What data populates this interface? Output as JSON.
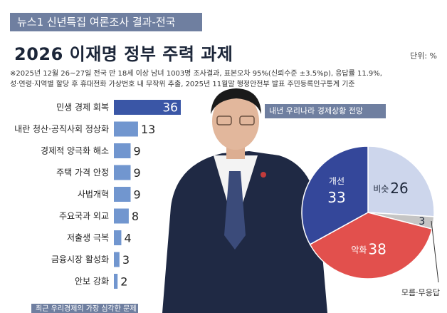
{
  "header_tag": "뉴스1 신년특집 여론조사 결과-전국",
  "title": "2026 이재명 정부 주력 과제",
  "unit": "단위: %",
  "notes": [
    "※2025년 12월 26~27일 전국 만 18세 이상 남녀 1003명 조사결과, 표본오차 95%(신뢰수준 ±3.5%p), 응답률 11.9%,",
    "성·연령·지역별 할당 후 휴대전화 가상번호 내 무작위 추출, 2025년 11월말 행정안전부 발표 주민등록인구통계 기준"
  ],
  "bottom_header": "최근 우리경제의 가장 심각한 문제",
  "colors": {
    "bar_accent": "#3a56a6",
    "bar_light": "#7196cf",
    "pie_bad": "#e2504d",
    "pie_good": "#34479a",
    "pie_same": "#cdd6ec",
    "pie_none": "#c5c5c5",
    "header_bg": "#6f7fa0"
  },
  "chart_data": [
    {
      "type": "bar",
      "orientation": "horizontal",
      "categories": [
        "민생 경제 회복",
        "내란 청산·공직사회 정상화",
        "경제적 양극화 해소",
        "주택 가격 안정",
        "사법개혁",
        "주요국과 외교",
        "저출생 극복",
        "금융시장 활성화",
        "안보 강화"
      ],
      "values": [
        36,
        13,
        9,
        9,
        9,
        8,
        4,
        3,
        2
      ],
      "xlim": [
        0,
        36
      ]
    },
    {
      "type": "pie",
      "title": "내년 우리나라 경제상황 전망",
      "slices": [
        {
          "label": "비슷",
          "value": 26
        },
        {
          "label": "",
          "value": 3
        },
        {
          "label": "악화",
          "value": 38
        },
        {
          "label": "개선",
          "value": 33
        }
      ],
      "note": "모름·무응답"
    }
  ]
}
